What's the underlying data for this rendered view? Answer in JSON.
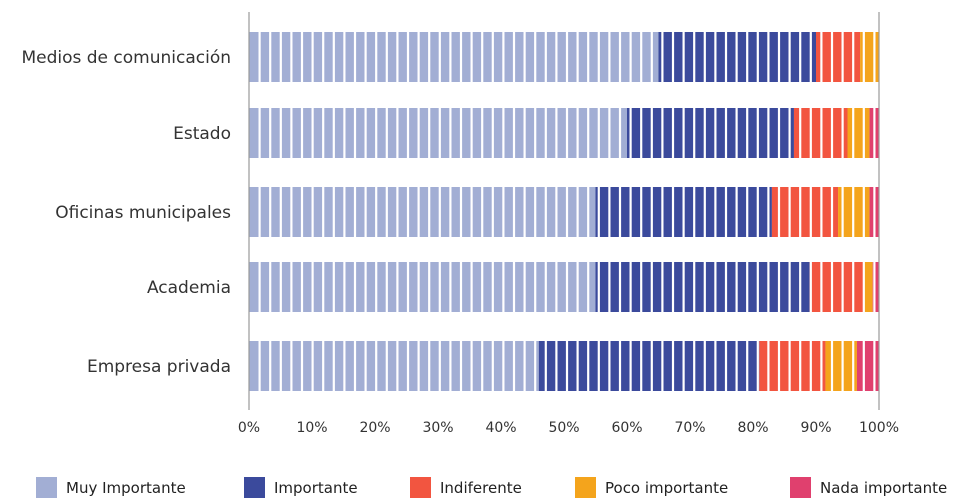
{
  "chart_data": {
    "type": "bar",
    "orientation": "horizontal",
    "stacked": true,
    "percent_stacked": true,
    "categories": [
      "Medios de comunicación",
      "Estado",
      "Oficinas municipales",
      "Academia",
      "Empresa privada"
    ],
    "series": [
      {
        "name": "Muy Importante",
        "color": "#a2aed4",
        "values": [
          65,
          60,
          55,
          55,
          46
        ]
      },
      {
        "name": "Importante",
        "color": "#3b4a9c",
        "values": [
          25,
          26.5,
          28,
          34,
          35
        ]
      },
      {
        "name": "Indiferente",
        "color": "#f25540",
        "values": [
          7,
          8.5,
          10.5,
          8.5,
          10.5
        ]
      },
      {
        "name": "Poco importante",
        "color": "#f4a41c",
        "values": [
          3,
          3.5,
          5,
          1.5,
          5
        ]
      },
      {
        "name": "Nada importante",
        "color": "#e0406e",
        "values": [
          0,
          1.5,
          1.5,
          1,
          3.5
        ]
      }
    ],
    "x_ticks": [
      "0%",
      "10%",
      "20%",
      "30%",
      "40%",
      "50%",
      "60%",
      "70%",
      "80%",
      "90%",
      "100%"
    ],
    "xlim": [
      0,
      100
    ],
    "legend_position": "bottom",
    "grid": false
  }
}
